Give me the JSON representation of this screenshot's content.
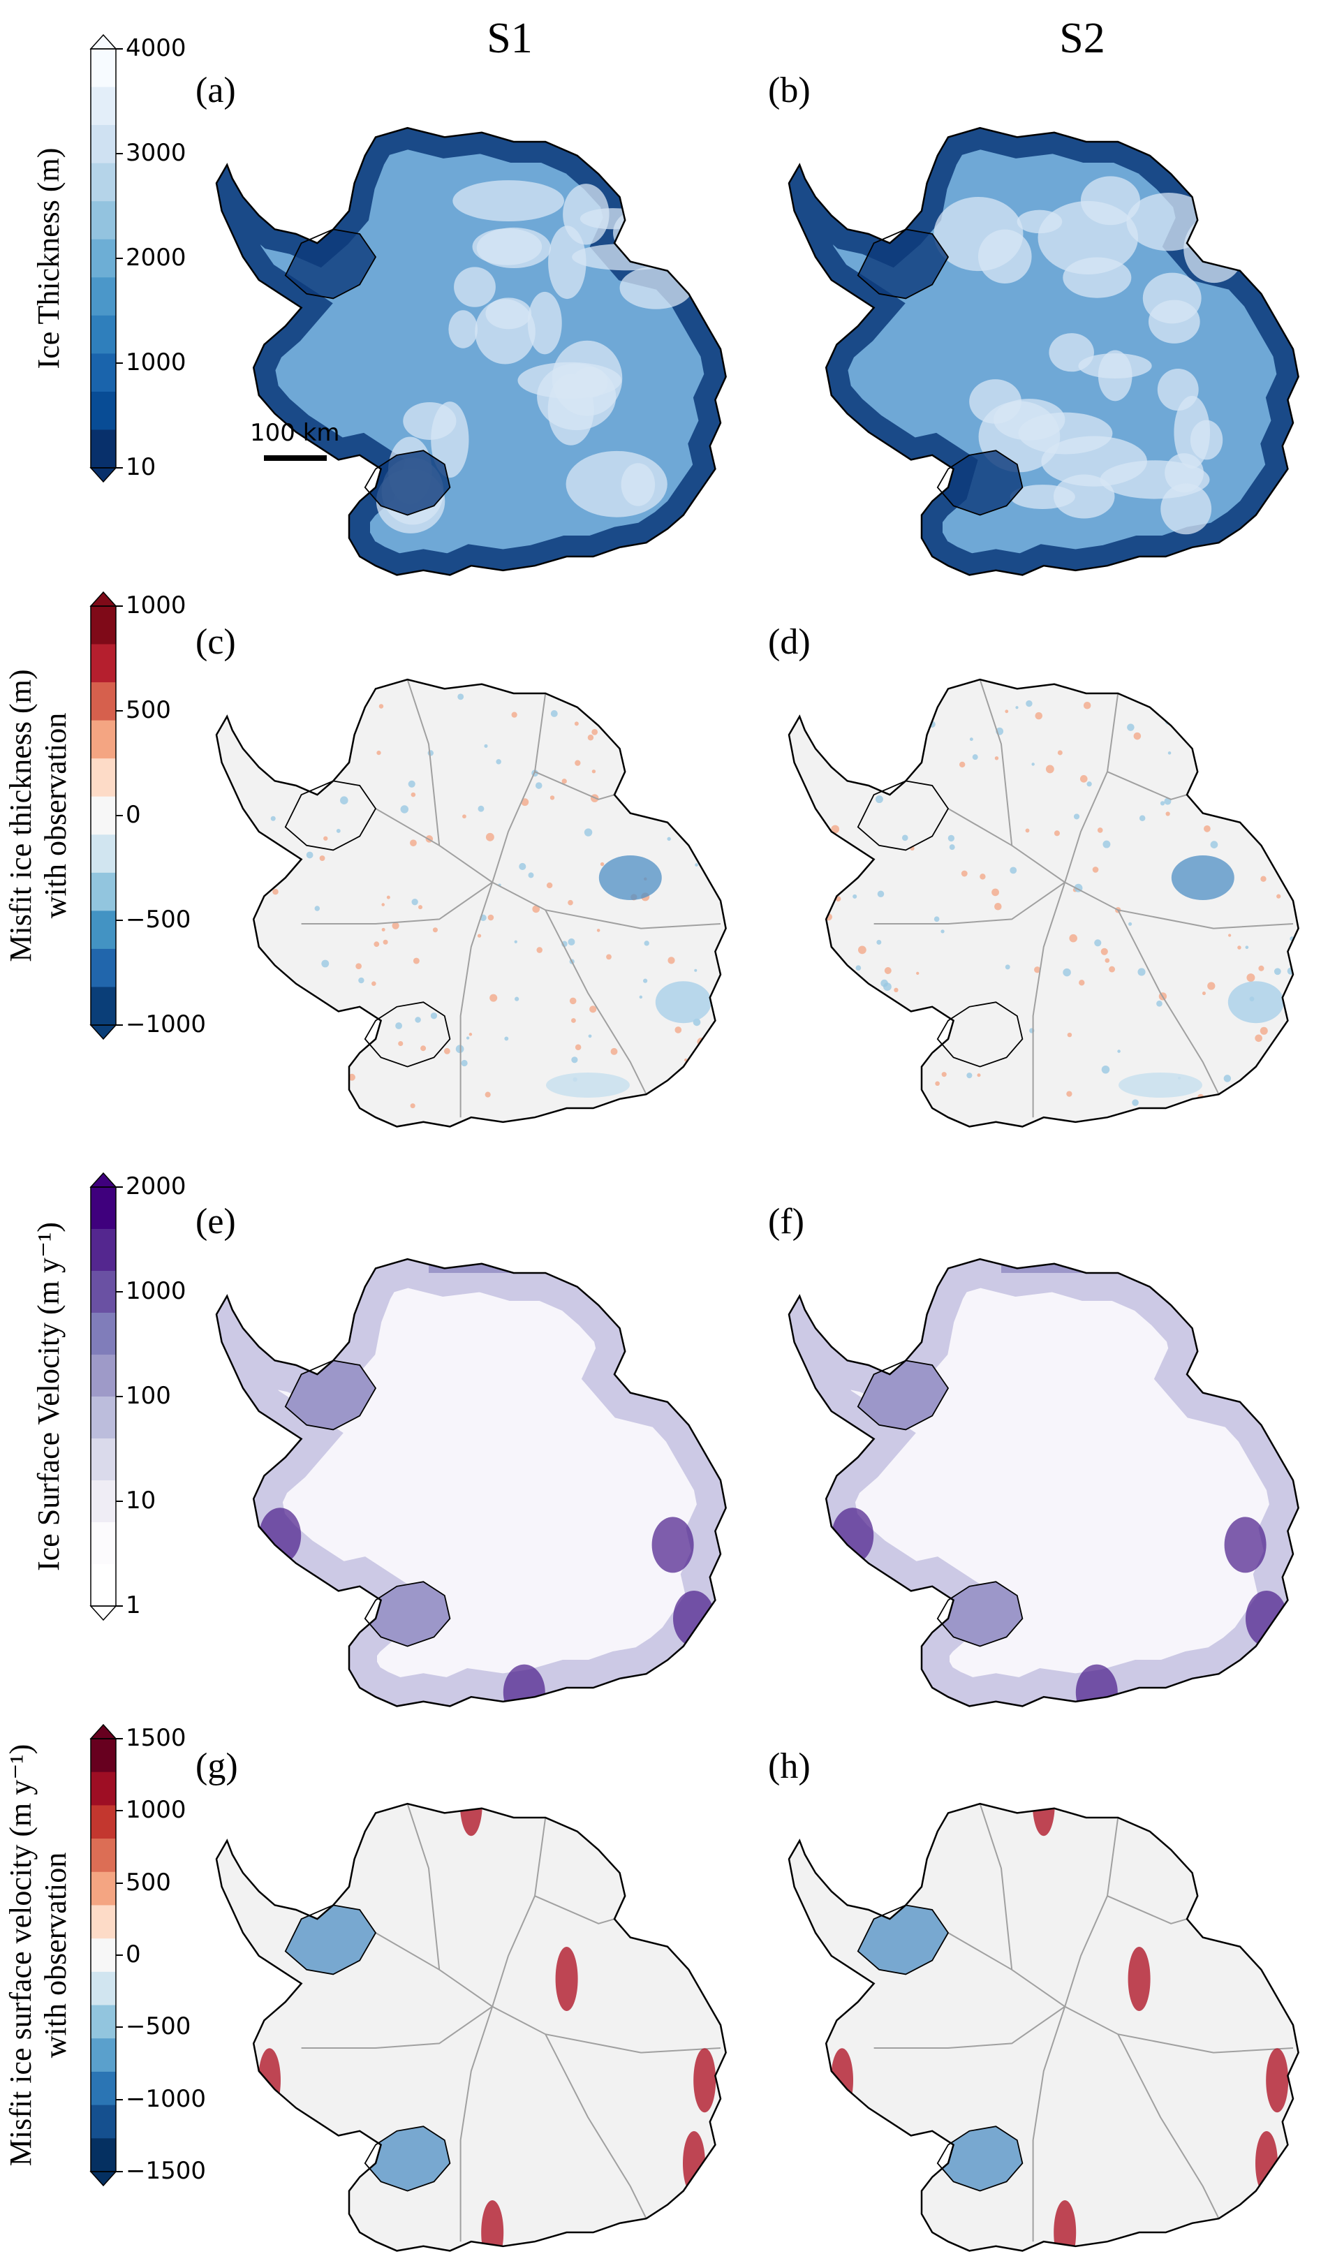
{
  "columns": [
    "S1",
    "S2"
  ],
  "rows": [
    {
      "panels": [
        "(a)",
        "(b)"
      ],
      "colorbar": {
        "label_lines": [
          "Ice Thickness (m)"
        ],
        "ticks": [
          "4000",
          "3000",
          "2000",
          "1000",
          "10"
        ],
        "colors": [
          "#f7fbff",
          "#e3eef9",
          "#cfe1f2",
          "#b5d4e9",
          "#93c3df",
          "#6daed5",
          "#4b97c9",
          "#2f7fbc",
          "#1a64ac",
          "#084c95",
          "#08306b"
        ],
        "extend": "both",
        "scale": "linear"
      },
      "scalebar_label": "100 km"
    },
    {
      "panels": [
        "(c)",
        "(d)"
      ],
      "colorbar": {
        "label_lines": [
          "Misfit ice thickness (m)",
          "with observation"
        ],
        "ticks": [
          "1000",
          "500",
          "0",
          "−500",
          "−1000"
        ],
        "colors": [
          "#7f0a18",
          "#b51f2e",
          "#d6604d",
          "#f4a582",
          "#fddbc7",
          "#f7f7f7",
          "#d1e5f0",
          "#92c5de",
          "#4393c3",
          "#2166ac",
          "#0a3e78"
        ],
        "extend": "both",
        "scale": "linear"
      }
    },
    {
      "panels": [
        "(e)",
        "(f)"
      ],
      "colorbar": {
        "label_lines": [
          "Ice Surface Velocity (m y⁻¹)"
        ],
        "ticks": [
          "2000",
          "1000",
          "100",
          "10",
          "1"
        ],
        "colors": [
          "#3f007d",
          "#54278f",
          "#6a51a3",
          "#807dba",
          "#9e9ac8",
          "#bcbddc",
          "#dadaeb",
          "#efedf5",
          "#fcfbfd",
          "#ffffff"
        ],
        "extend": "both",
        "scale": "log"
      }
    },
    {
      "panels": [
        "(g)",
        "(h)"
      ],
      "colorbar": {
        "label_lines": [
          "Misfit ice surface velocity (m y⁻¹)",
          "with observation"
        ],
        "ticks": [
          "1500",
          "1000",
          "500",
          "0",
          "−500",
          "−1000",
          "−1500"
        ],
        "colors": [
          "#67001f",
          "#9e0e24",
          "#c3372f",
          "#dc6e55",
          "#f4a582",
          "#fddbc7",
          "#f7f7f7",
          "#d1e5f0",
          "#92c5de",
          "#5aa0cc",
          "#2b75b4",
          "#15508f",
          "#053061"
        ],
        "extend": "both",
        "scale": "linear"
      }
    }
  ],
  "fills": {
    "thickness_base": "#6fa8d6",
    "thickness_edge": "#0c3a7a",
    "thickness_light": "#d7e6f4",
    "misfit_base": "#f2f2f2",
    "velocity_base": "#f7f5fb",
    "shelf_purple": "#9c97c9",
    "dark_purple": "#4a1d8a",
    "red_streak": "#b0192a",
    "blue_patch": "#4f8fc4",
    "basin_line": "#a0a0a0"
  }
}
